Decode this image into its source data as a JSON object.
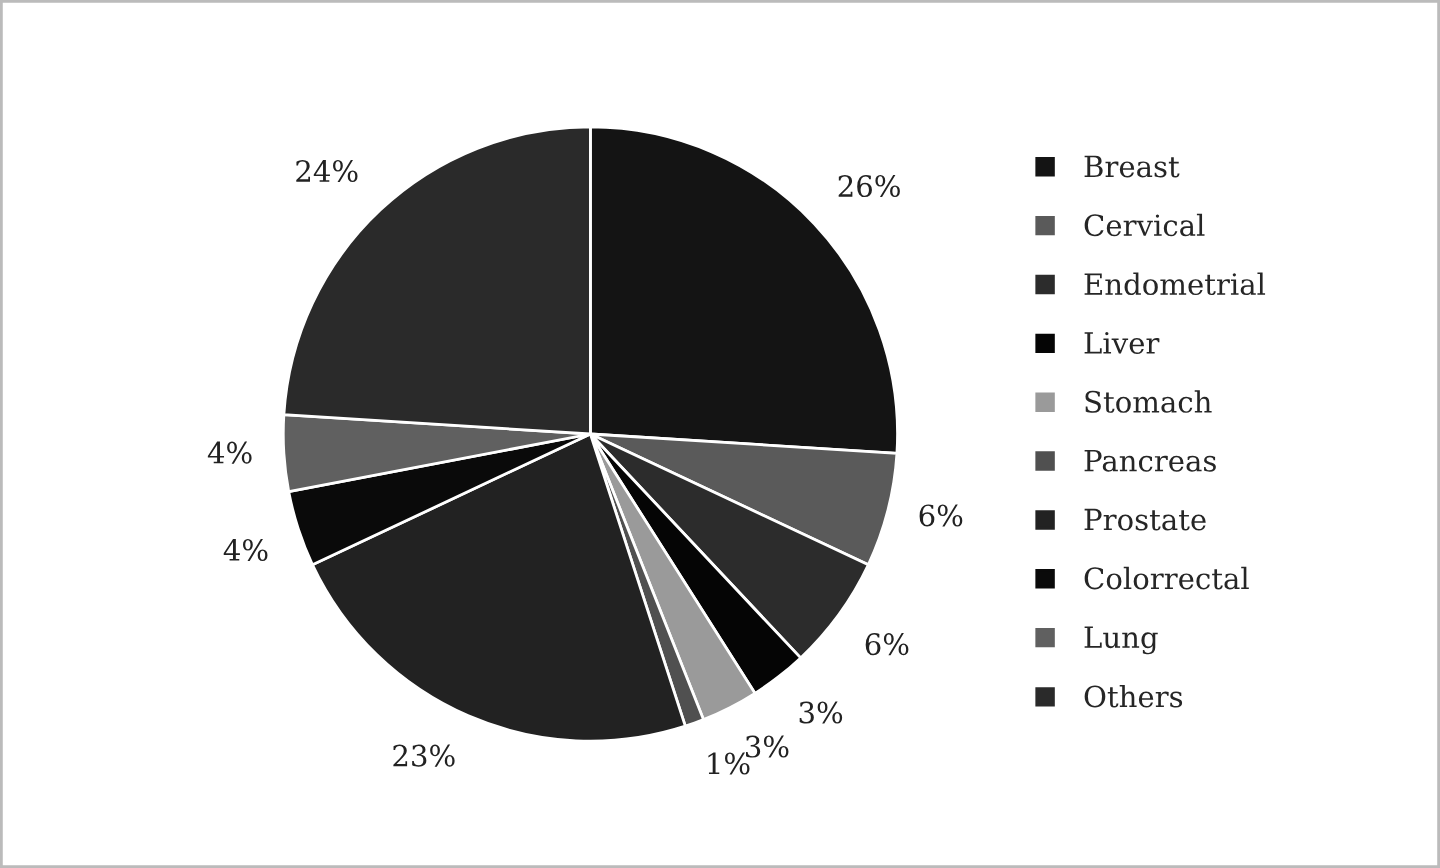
{
  "chart_data": {
    "type": "pie",
    "categories": [
      "Breast",
      "Cervical",
      "Endometrial",
      "Liver",
      "Stomach",
      "Pancreas",
      "Prostate",
      "Colorrectal",
      "Lung",
      "Others"
    ],
    "values": [
      26,
      6,
      6,
      3,
      3,
      1,
      23,
      4,
      4,
      24
    ],
    "colors": [
      "#141414",
      "#5a5a5a",
      "#2c2c2c",
      "#050505",
      "#9a9a9a",
      "#505050",
      "#222222",
      "#0a0a0a",
      "#606060",
      "#2a2a2a"
    ],
    "value_labels": [
      "26%",
      "6%",
      "6%",
      "3%",
      "3%",
      "1%",
      "23%",
      "4%",
      "4%",
      "24%"
    ],
    "legend": "right"
  }
}
